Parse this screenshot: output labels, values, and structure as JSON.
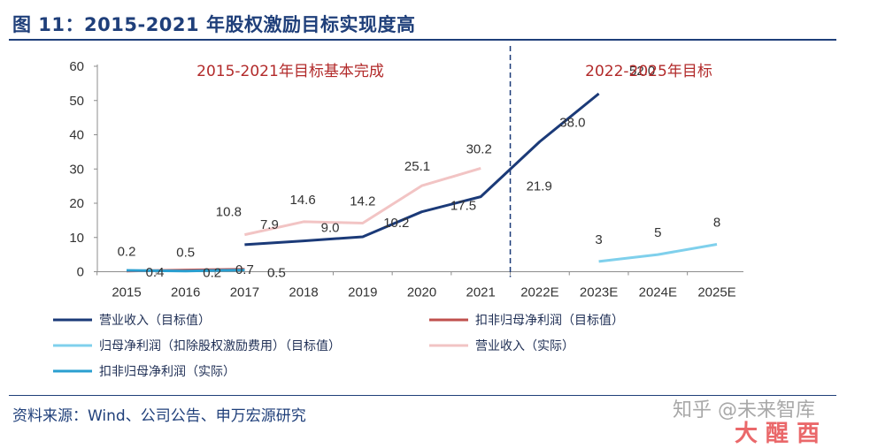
{
  "header": {
    "title": "图 11：2015-2021 年股权激励目标实现度高"
  },
  "footer": {
    "source": "资料来源：Wind、公司公告、申万宏源研究"
  },
  "watermark": {
    "text": "知乎 @未来智库"
  },
  "chart_data": {
    "type": "line",
    "categories": [
      "2015",
      "2016",
      "2017",
      "2018",
      "2019",
      "2020",
      "2021",
      "2022E",
      "2023E",
      "2024E",
      "2025E"
    ],
    "y_ticks": [
      "0",
      "10",
      "20",
      "30",
      "40",
      "50",
      "60"
    ],
    "ylim": [
      0,
      60
    ],
    "grid": false,
    "legend_position": "bottom",
    "annotations": {
      "left_region": "2015-2021年目标基本完成",
      "right_region": "2022-2025年目标"
    },
    "divider_after_category": "2021",
    "series": [
      {
        "name": "营业收入（目标值）",
        "color": "#1b3a78",
        "values": [
          null,
          null,
          7.9,
          9.0,
          10.2,
          17.5,
          21.9,
          38.0,
          52.0,
          null,
          null
        ],
        "labels": [
          null,
          null,
          "7.9",
          "9.0",
          "10.2",
          "17.5",
          "21.9",
          "38.0",
          "52.0",
          null,
          null
        ]
      },
      {
        "name": "扣非归母净利润（目标值）",
        "color": "#c0504d",
        "values": [
          0.2,
          0.5,
          0.7,
          null,
          null,
          null,
          null,
          null,
          null,
          null,
          null
        ],
        "labels": [
          "0.2",
          "0.5",
          "0.7",
          null,
          null,
          null,
          null,
          null,
          null,
          null,
          null
        ]
      },
      {
        "name": "归母净利润（扣除股权激励费用）（目标值）",
        "color": "#7fd0ec",
        "values": [
          null,
          null,
          null,
          null,
          null,
          null,
          null,
          null,
          3,
          5,
          8
        ],
        "labels": [
          null,
          null,
          null,
          null,
          null,
          null,
          null,
          null,
          "3",
          "5",
          "8"
        ]
      },
      {
        "name": "营业收入（实际）",
        "color": "#f2c4c4",
        "values": [
          null,
          null,
          10.8,
          14.6,
          14.2,
          25.1,
          30.2,
          null,
          null,
          null,
          null
        ],
        "labels": [
          null,
          null,
          "10.8",
          "14.6",
          "14.2",
          "25.1",
          "30.2",
          null,
          null,
          null,
          null
        ]
      },
      {
        "name": "扣非归母净利润（实际）",
        "color": "#2a9fd0",
        "values": [
          0.4,
          0.2,
          0.5,
          null,
          null,
          null,
          null,
          null,
          null,
          null,
          null
        ],
        "labels": [
          "0.4",
          "0.2",
          "0.5",
          null,
          null,
          null,
          null,
          null,
          null,
          null,
          null
        ]
      }
    ]
  }
}
